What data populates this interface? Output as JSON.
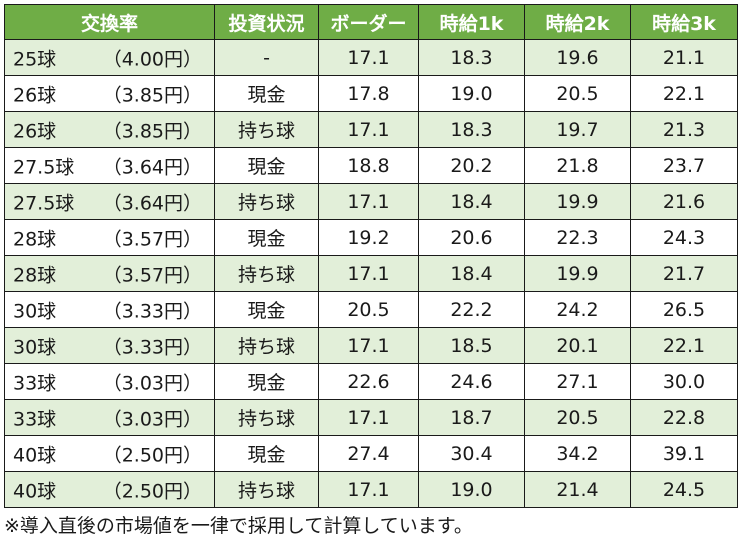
{
  "header": {
    "rate": "交換率",
    "investment": "投資状況",
    "border": "ボーダー",
    "wage1k": "時給1k",
    "wage2k": "時給2k",
    "wage3k": "時給3k"
  },
  "rows": [
    {
      "balls": "25球",
      "yen": "（4.00円）",
      "investment": "-",
      "border": "17.1",
      "wage1k": "18.3",
      "wage2k": "19.6",
      "wage3k": "21.1"
    },
    {
      "balls": "26球",
      "yen": "（3.85円）",
      "investment": "現金",
      "border": "17.8",
      "wage1k": "19.0",
      "wage2k": "20.5",
      "wage3k": "22.1"
    },
    {
      "balls": "26球",
      "yen": "（3.85円）",
      "investment": "持ち球",
      "border": "17.1",
      "wage1k": "18.3",
      "wage2k": "19.7",
      "wage3k": "21.3"
    },
    {
      "balls": "27.5球",
      "yen": "（3.64円）",
      "investment": "現金",
      "border": "18.8",
      "wage1k": "20.2",
      "wage2k": "21.8",
      "wage3k": "23.7"
    },
    {
      "balls": "27.5球",
      "yen": "（3.64円）",
      "investment": "持ち球",
      "border": "17.1",
      "wage1k": "18.4",
      "wage2k": "19.9",
      "wage3k": "21.6"
    },
    {
      "balls": "28球",
      "yen": "（3.57円）",
      "investment": "現金",
      "border": "19.2",
      "wage1k": "20.6",
      "wage2k": "22.3",
      "wage3k": "24.3"
    },
    {
      "balls": "28球",
      "yen": "（3.57円）",
      "investment": "持ち球",
      "border": "17.1",
      "wage1k": "18.4",
      "wage2k": "19.9",
      "wage3k": "21.7"
    },
    {
      "balls": "30球",
      "yen": "（3.33円）",
      "investment": "現金",
      "border": "20.5",
      "wage1k": "22.2",
      "wage2k": "24.2",
      "wage3k": "26.5"
    },
    {
      "balls": "30球",
      "yen": "（3.33円）",
      "investment": "持ち球",
      "border": "17.1",
      "wage1k": "18.5",
      "wage2k": "20.1",
      "wage3k": "22.1"
    },
    {
      "balls": "33球",
      "yen": "（3.03円）",
      "investment": "現金",
      "border": "22.6",
      "wage1k": "24.6",
      "wage2k": "27.1",
      "wage3k": "30.0"
    },
    {
      "balls": "33球",
      "yen": "（3.03円）",
      "investment": "持ち球",
      "border": "17.1",
      "wage1k": "18.7",
      "wage2k": "20.5",
      "wage3k": "22.8"
    },
    {
      "balls": "40球",
      "yen": "（2.50円）",
      "investment": "現金",
      "border": "27.4",
      "wage1k": "30.4",
      "wage2k": "34.2",
      "wage3k": "39.1"
    },
    {
      "balls": "40球",
      "yen": "（2.50円）",
      "investment": "持ち球",
      "border": "17.1",
      "wage1k": "19.0",
      "wage2k": "21.4",
      "wage3k": "24.5"
    }
  ],
  "footnote": "※導入直後の市場値を一律で採用して計算しています。",
  "colors": {
    "header_bg": "#6fad46",
    "header_text": "#ffffff",
    "alt_row_bg": "#e2efd9",
    "row_bg": "#ffffff"
  }
}
